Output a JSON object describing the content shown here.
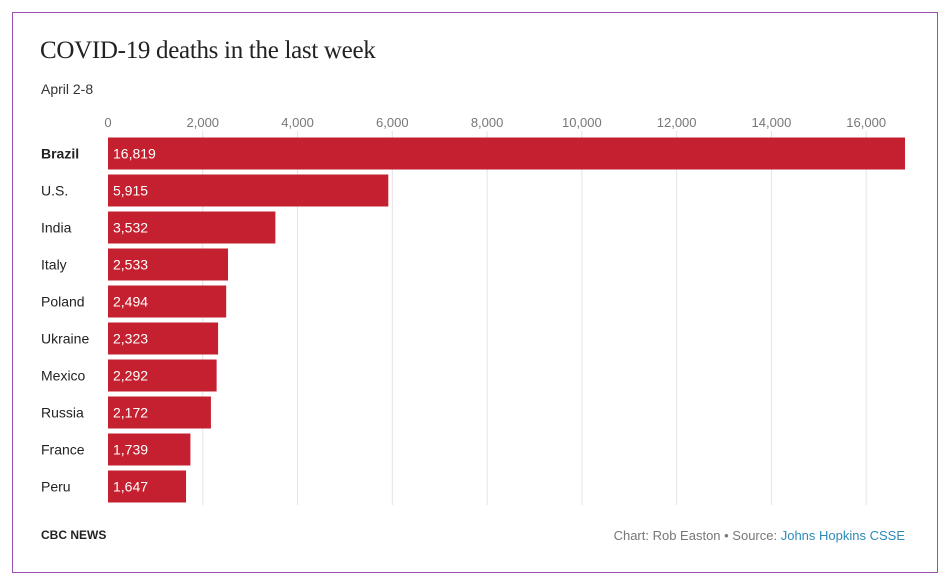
{
  "header": {
    "title": "COVID-19 deaths in the last week",
    "subtitle": "April 2-8"
  },
  "footer": {
    "brand": "CBC NEWS",
    "credit_prefix": "Chart: Rob Easton • Source: ",
    "source_link": "Johns Hopkins CSSE"
  },
  "colors": {
    "bar": "#c4202f",
    "grid": "#e3e3e3",
    "tick_label": "#777777",
    "category_label": "#222222"
  },
  "chart_data": {
    "type": "bar",
    "orientation": "horizontal",
    "title": "COVID-19 deaths in the last week",
    "subtitle": "April 2-8",
    "categories": [
      "Brazil",
      "U.S.",
      "India",
      "Italy",
      "Poland",
      "Ukraine",
      "Mexico",
      "Russia",
      "France",
      "Peru"
    ],
    "values": [
      16819,
      5915,
      3532,
      2533,
      2494,
      2323,
      2292,
      2172,
      1739,
      1647
    ],
    "value_labels": [
      "16,819",
      "5,915",
      "3,532",
      "2,533",
      "2,494",
      "2,323",
      "2,292",
      "2,172",
      "1,739",
      "1,647"
    ],
    "xlim": [
      0,
      16819
    ],
    "ticks": [
      0,
      2000,
      4000,
      6000,
      8000,
      10000,
      12000,
      14000,
      16000
    ],
    "tick_labels": [
      "0",
      "2,000",
      "4,000",
      "6,000",
      "8,000",
      "10,000",
      "12,000",
      "14,000",
      "16,000"
    ],
    "highlight_category": "Brazil",
    "xlabel": "",
    "ylabel": "",
    "grid": true,
    "legend": "none"
  }
}
